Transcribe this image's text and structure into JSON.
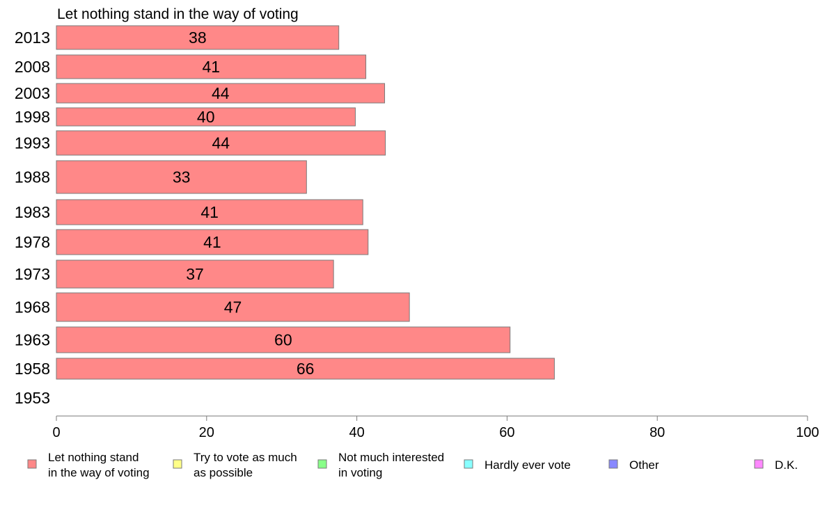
{
  "chart_data": {
    "type": "bar",
    "orientation": "horizontal",
    "title": "Let nothing stand in the way of voting",
    "xlabel": "",
    "ylabel": "",
    "xlim": [
      0,
      100
    ],
    "xticks": [
      0,
      20,
      40,
      60,
      80,
      100
    ],
    "categories": [
      "2013",
      "2008",
      "2003",
      "1998",
      "1993",
      "1988",
      "1983",
      "1978",
      "1973",
      "1968",
      "1963",
      "1958",
      "1953"
    ],
    "series": [
      {
        "name": "Let nothing stand in the way of voting",
        "color": "#ff8888",
        "values": [
          37.6,
          41.2,
          43.7,
          39.8,
          43.8,
          33.3,
          40.8,
          41.5,
          36.9,
          47.0,
          60.4,
          66.3,
          null
        ],
        "labels": [
          "38",
          "41",
          "44",
          "40",
          "44",
          "33",
          "41",
          "41",
          "37",
          "47",
          "60",
          "66",
          ""
        ]
      }
    ],
    "grid": false,
    "legend": {
      "placement": "bottom",
      "entries": [
        {
          "lines": [
            "Let nothing stand",
            "in the way of voting"
          ],
          "color": "#ff8888"
        },
        {
          "lines": [
            "Try to vote as much",
            "as possible"
          ],
          "color": "#ffff88"
        },
        {
          "lines": [
            "Not much interested",
            "in voting"
          ],
          "color": "#88ff88"
        },
        {
          "lines": [
            "Hardly ever vote"
          ],
          "color": "#88ffff"
        },
        {
          "lines": [
            "Other"
          ],
          "color": "#8888ff"
        },
        {
          "lines": [
            "D.K."
          ],
          "color": "#ff88ff"
        }
      ]
    }
  }
}
